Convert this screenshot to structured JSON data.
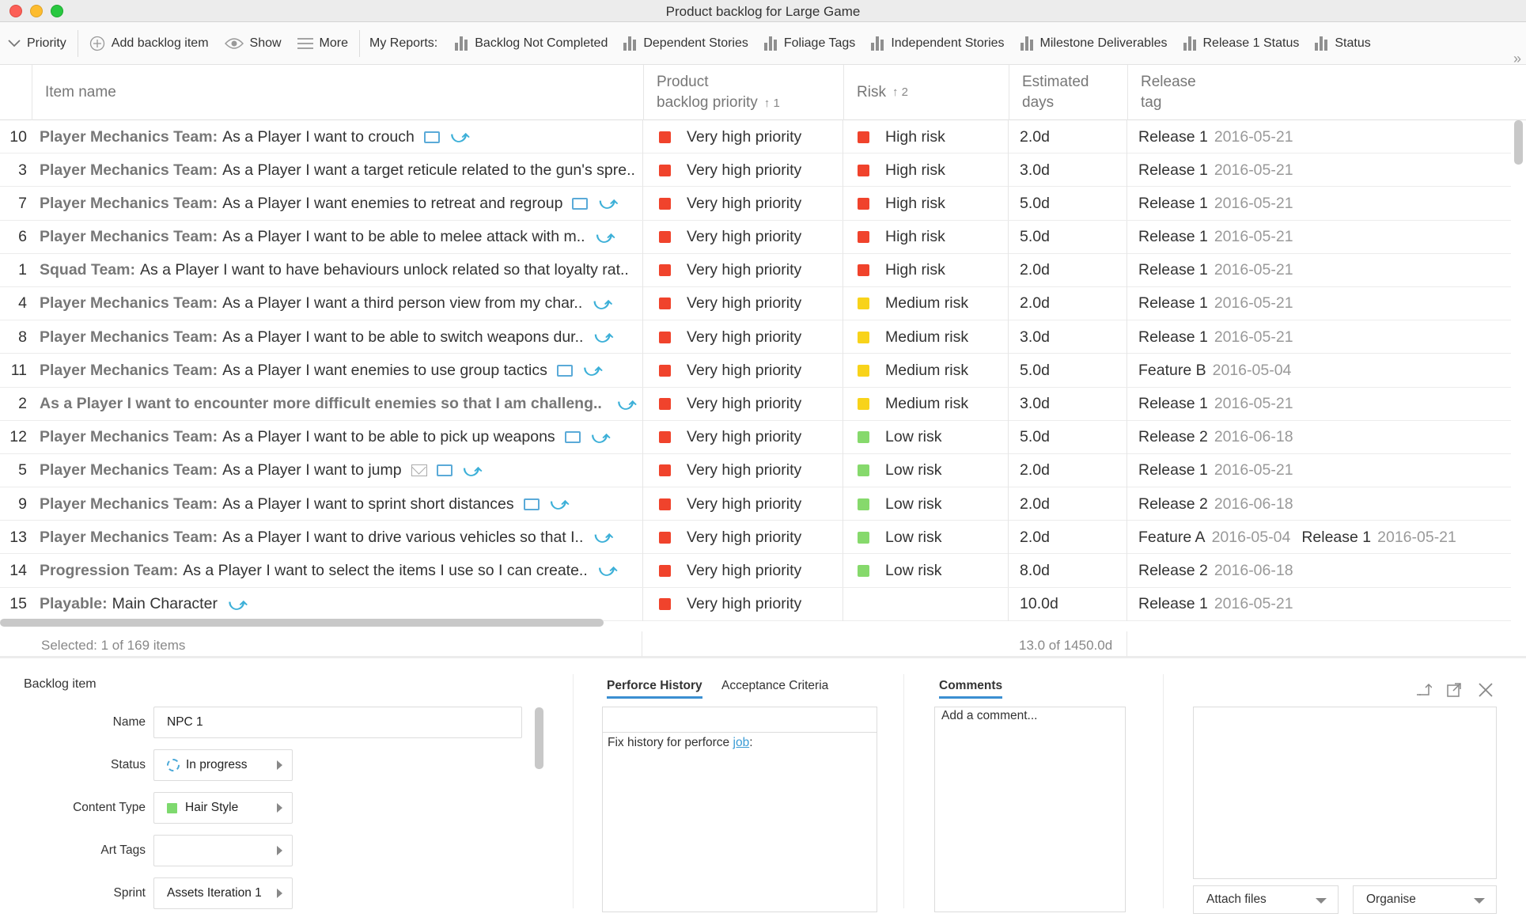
{
  "window": {
    "title": "Product backlog for Large Game"
  },
  "toolbar": {
    "priority": "Priority",
    "add_item": "Add backlog item",
    "show": "Show",
    "more": "More",
    "my_reports": "My Reports:",
    "reports": [
      "Backlog Not Completed",
      "Dependent Stories",
      "Foliage Tags",
      "Independent Stories",
      "Milestone Deliverables",
      "Release 1 Status",
      "Status"
    ],
    "overflow": "»"
  },
  "table": {
    "columns": {
      "item_name": "Item name",
      "priority_a": "Product",
      "priority_b": "backlog priority",
      "priority_sort": "↑ 1",
      "risk": "Risk",
      "risk_sort": "↑ 2",
      "days_a": "Estimated",
      "days_b": "days",
      "release_a": "Release",
      "release_b": "tag"
    },
    "rows": [
      {
        "num": "10",
        "team": "Player Mechanics Team:",
        "text": "As a Player I want to crouch",
        "comment": true,
        "mail": false,
        "link": true,
        "priority": "Very high priority",
        "risk": "High risk",
        "risk_color": "#f0432c",
        "days": "2.0d",
        "rel1": "Release 1",
        "date1": "2016-05-21",
        "rel2": "",
        "date2": ""
      },
      {
        "num": "3",
        "team": "Player Mechanics Team:",
        "text": "As a Player I want a target reticule related to the gun's spre..",
        "comment": false,
        "mail": false,
        "link": false,
        "priority": "Very high priority",
        "risk": "High risk",
        "risk_color": "#f0432c",
        "days": "3.0d",
        "rel1": "Release 1",
        "date1": "2016-05-21",
        "rel2": "",
        "date2": ""
      },
      {
        "num": "7",
        "team": "Player Mechanics Team:",
        "text": "As a Player I want enemies to retreat and regroup",
        "comment": true,
        "mail": false,
        "link": true,
        "priority": "Very high priority",
        "risk": "High risk",
        "risk_color": "#f0432c",
        "days": "5.0d",
        "rel1": "Release 1",
        "date1": "2016-05-21",
        "rel2": "",
        "date2": ""
      },
      {
        "num": "6",
        "team": "Player Mechanics Team:",
        "text": "As a Player I want to be able to melee attack with m..",
        "comment": false,
        "mail": false,
        "link": true,
        "priority": "Very high priority",
        "risk": "High risk",
        "risk_color": "#f0432c",
        "days": "5.0d",
        "rel1": "Release 1",
        "date1": "2016-05-21",
        "rel2": "",
        "date2": ""
      },
      {
        "num": "1",
        "team": "Squad Team:",
        "text": "As a Player I want to have behaviours unlock related so that loyalty rat..",
        "comment": false,
        "mail": false,
        "link": false,
        "priority": "Very high priority",
        "risk": "High risk",
        "risk_color": "#f0432c",
        "days": "2.0d",
        "rel1": "Release 1",
        "date1": "2016-05-21",
        "rel2": "",
        "date2": ""
      },
      {
        "num": "4",
        "team": "Player Mechanics Team:",
        "text": "As a Player I want a third person view from my char..",
        "comment": false,
        "mail": false,
        "link": true,
        "priority": "Very high priority",
        "risk": "Medium risk",
        "risk_color": "#f8d31a",
        "days": "2.0d",
        "rel1": "Release 1",
        "date1": "2016-05-21",
        "rel2": "",
        "date2": ""
      },
      {
        "num": "8",
        "team": "Player Mechanics Team:",
        "text": "As a Player I want to be able to switch weapons dur..",
        "comment": false,
        "mail": false,
        "link": true,
        "priority": "Very high priority",
        "risk": "Medium risk",
        "risk_color": "#f8d31a",
        "days": "3.0d",
        "rel1": "Release 1",
        "date1": "2016-05-21",
        "rel2": "",
        "date2": ""
      },
      {
        "num": "11",
        "team": "Player Mechanics Team:",
        "text": "As a Player I want enemies to use group tactics",
        "comment": true,
        "mail": false,
        "link": true,
        "priority": "Very high priority",
        "risk": "Medium risk",
        "risk_color": "#f8d31a",
        "days": "5.0d",
        "rel1": "Feature B",
        "date1": "2016-05-04",
        "rel2": "",
        "date2": ""
      },
      {
        "num": "2",
        "team": "As a Player I want to encounter more difficult enemies so that I am challeng..",
        "text": "",
        "comment": false,
        "mail": false,
        "link": true,
        "priority": "Very high priority",
        "risk": "Medium risk",
        "risk_color": "#f8d31a",
        "days": "3.0d",
        "rel1": "Release 1",
        "date1": "2016-05-21",
        "rel2": "",
        "date2": ""
      },
      {
        "num": "12",
        "team": "Player Mechanics Team:",
        "text": "As a Player I want to be able to pick up weapons",
        "comment": true,
        "mail": false,
        "link": true,
        "priority": "Very high priority",
        "risk": "Low risk",
        "risk_color": "#86d96c",
        "days": "5.0d",
        "rel1": "Release 2",
        "date1": "2016-06-18",
        "rel2": "",
        "date2": ""
      },
      {
        "num": "5",
        "team": "Player Mechanics Team:",
        "text": "As a Player I want to jump",
        "comment": true,
        "mail": true,
        "link": true,
        "priority": "Very high priority",
        "risk": "Low risk",
        "risk_color": "#86d96c",
        "days": "2.0d",
        "rel1": "Release 1",
        "date1": "2016-05-21",
        "rel2": "",
        "date2": ""
      },
      {
        "num": "9",
        "team": "Player Mechanics Team:",
        "text": "As a Player I want to sprint short distances",
        "comment": true,
        "mail": false,
        "link": true,
        "priority": "Very high priority",
        "risk": "Low risk",
        "risk_color": "#86d96c",
        "days": "2.0d",
        "rel1": "Release 2",
        "date1": "2016-06-18",
        "rel2": "",
        "date2": ""
      },
      {
        "num": "13",
        "team": "Player Mechanics Team:",
        "text": "As a Player I want to drive various vehicles so that I..",
        "comment": false,
        "mail": false,
        "link": true,
        "priority": "Very high priority",
        "risk": "Low risk",
        "risk_color": "#86d96c",
        "days": "2.0d",
        "rel1": "Feature A",
        "date1": "2016-05-04",
        "rel2": "Release 1",
        "date2": "2016-05-21"
      },
      {
        "num": "14",
        "team": "Progression Team:",
        "text": "As a Player I want to select the items I use so I can create..",
        "comment": false,
        "mail": false,
        "link": true,
        "priority": "Very high priority",
        "risk": "Low risk",
        "risk_color": "#86d96c",
        "days": "8.0d",
        "rel1": "Release 2",
        "date1": "2016-06-18",
        "rel2": "",
        "date2": ""
      },
      {
        "num": "15",
        "team": "Playable:",
        "text": "Main Character",
        "comment": false,
        "mail": false,
        "link": true,
        "priority": "Very high priority",
        "risk": "",
        "risk_color": "",
        "days": "10.0d",
        "rel1": "Release 1",
        "date1": "2016-05-21",
        "rel2": "",
        "date2": ""
      }
    ],
    "priority_color": "#f0432c"
  },
  "status": {
    "selected": "Selected: 1 of 169 items",
    "sum": "13.0 of 1450.0d"
  },
  "detail": {
    "title": "Backlog item",
    "fields": {
      "name_label": "Name",
      "name_value": "NPC 1",
      "status_label": "Status",
      "status_value": "In progress",
      "content_type_label": "Content Type",
      "content_type_value": "Hair Style",
      "art_tags_label": "Art Tags",
      "art_tags_value": "",
      "sprint_label": "Sprint",
      "sprint_value": "Assets Iteration 1"
    },
    "tabs": {
      "perforce": "Perforce History",
      "acceptance": "Acceptance Criteria",
      "comments": "Comments"
    },
    "history_text": "Fix history for perforce ",
    "history_link": "job",
    "history_suffix": ":",
    "comment_placeholder": "Add a comment...",
    "attach_label": "Attach files",
    "organise_label": "Organise"
  }
}
